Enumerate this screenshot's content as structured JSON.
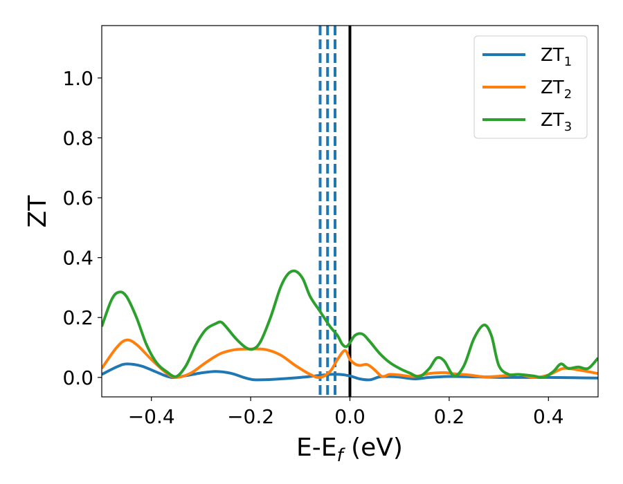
{
  "chart_data": {
    "type": "line",
    "xlabel_main": "E-E",
    "xlabel_sub": "f",
    "xlabel_unit": " (eV)",
    "ylabel": "ZT",
    "xlim": [
      -0.5,
      0.5
    ],
    "ylim": [
      -0.065,
      1.175
    ],
    "xticks": [
      {
        "value": -0.4,
        "label": "−0.4"
      },
      {
        "value": -0.2,
        "label": "−0.2"
      },
      {
        "value": 0.0,
        "label": "0.0"
      },
      {
        "value": 0.2,
        "label": "0.2"
      },
      {
        "value": 0.4,
        "label": "0.4"
      }
    ],
    "yticks": [
      {
        "value": 0.0,
        "label": "0.0"
      },
      {
        "value": 0.2,
        "label": "0.2"
      },
      {
        "value": 0.4,
        "label": "0.4"
      },
      {
        "value": 0.6,
        "label": "0.6"
      },
      {
        "value": 0.8,
        "label": "0.8"
      },
      {
        "value": 1.0,
        "label": "1.0"
      }
    ],
    "grid": false,
    "legend_position": "top-right",
    "vlines": [
      {
        "x": -0.06,
        "color": "#1f77b4",
        "style": "dashed"
      },
      {
        "x": -0.045,
        "color": "#1f77b4",
        "style": "dashed"
      },
      {
        "x": -0.03,
        "color": "#1f77b4",
        "style": "dashed"
      },
      {
        "x": 0.0,
        "color": "#000000",
        "style": "solid"
      }
    ],
    "series": [
      {
        "name": "ZT",
        "sub": "1",
        "color": "#1f77b4",
        "x": [
          -0.5,
          -0.47,
          -0.45,
          -0.42,
          -0.39,
          -0.36,
          -0.33,
          -0.3,
          -0.27,
          -0.24,
          -0.21,
          -0.19,
          -0.15,
          -0.1,
          -0.07,
          -0.04,
          -0.02,
          0.0,
          0.02,
          0.04,
          0.06,
          0.08,
          0.1,
          0.13,
          0.16,
          0.2,
          0.25,
          0.3,
          0.35,
          0.4,
          0.45,
          0.5
        ],
        "y": [
          0.01,
          0.035,
          0.045,
          0.038,
          0.018,
          0.0,
          0.006,
          0.015,
          0.02,
          0.014,
          -0.002,
          -0.008,
          -0.006,
          0.0,
          0.005,
          0.01,
          0.01,
          0.005,
          -0.005,
          -0.008,
          0.002,
          0.003,
          0.001,
          -0.005,
          0.0,
          0.003,
          0.002,
          0.0,
          0.0,
          0.0,
          -0.001,
          -0.002
        ]
      },
      {
        "name": "ZT",
        "sub": "2",
        "color": "#ff7f0e",
        "x": [
          -0.5,
          -0.47,
          -0.45,
          -0.43,
          -0.4,
          -0.37,
          -0.35,
          -0.32,
          -0.29,
          -0.26,
          -0.23,
          -0.2,
          -0.17,
          -0.14,
          -0.11,
          -0.08,
          -0.06,
          -0.04,
          -0.025,
          -0.01,
          0.0,
          0.01,
          0.02,
          0.035,
          0.05,
          0.065,
          0.08,
          0.1,
          0.13,
          0.16,
          0.19,
          0.21,
          0.24,
          0.27,
          0.3,
          0.34,
          0.37,
          0.4,
          0.43,
          0.46,
          0.5
        ],
        "y": [
          0.03,
          0.1,
          0.125,
          0.11,
          0.06,
          0.015,
          0.0,
          0.015,
          0.05,
          0.08,
          0.093,
          0.095,
          0.093,
          0.075,
          0.04,
          0.01,
          0.0,
          0.02,
          0.06,
          0.09,
          0.06,
          0.045,
          0.04,
          0.043,
          0.025,
          0.003,
          0.01,
          0.008,
          0.003,
          0.013,
          0.016,
          0.012,
          0.008,
          0.002,
          0.004,
          0.01,
          0.0,
          0.008,
          0.03,
          0.025,
          0.013
        ]
      },
      {
        "name": "ZT",
        "sub": "3",
        "color": "#2ca02c",
        "x": [
          -0.5,
          -0.48,
          -0.465,
          -0.45,
          -0.43,
          -0.41,
          -0.39,
          -0.37,
          -0.35,
          -0.33,
          -0.31,
          -0.29,
          -0.27,
          -0.26,
          -0.25,
          -0.23,
          -0.21,
          -0.195,
          -0.18,
          -0.16,
          -0.14,
          -0.125,
          -0.11,
          -0.095,
          -0.08,
          -0.06,
          -0.04,
          -0.025,
          -0.015,
          -0.005,
          0.01,
          0.025,
          0.04,
          0.06,
          0.08,
          0.1,
          0.12,
          0.14,
          0.16,
          0.175,
          0.19,
          0.21,
          0.23,
          0.25,
          0.27,
          0.285,
          0.3,
          0.32,
          0.34,
          0.37,
          0.39,
          0.41,
          0.425,
          0.44,
          0.46,
          0.48,
          0.5
        ],
        "y": [
          0.17,
          0.26,
          0.285,
          0.27,
          0.2,
          0.11,
          0.05,
          0.02,
          0.003,
          0.04,
          0.11,
          0.16,
          0.18,
          0.185,
          0.17,
          0.13,
          0.1,
          0.095,
          0.12,
          0.2,
          0.3,
          0.345,
          0.355,
          0.33,
          0.27,
          0.22,
          0.17,
          0.14,
          0.11,
          0.105,
          0.14,
          0.145,
          0.12,
          0.08,
          0.05,
          0.03,
          0.015,
          0.003,
          0.03,
          0.065,
          0.055,
          0.005,
          0.04,
          0.13,
          0.175,
          0.14,
          0.04,
          0.01,
          0.01,
          0.005,
          0.0,
          0.02,
          0.045,
          0.03,
          0.035,
          0.03,
          0.065
        ]
      }
    ]
  }
}
